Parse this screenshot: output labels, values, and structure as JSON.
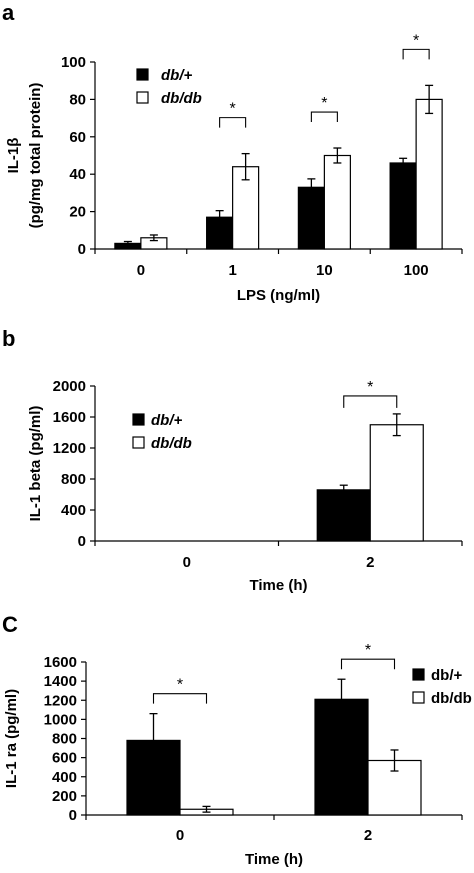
{
  "colors": {
    "db_plus": "#000000",
    "db_db": "#ffffff",
    "stroke": "#000000"
  },
  "chart_data": [
    {
      "panel": "a",
      "type": "bar",
      "xlabel": "LPS (ng/ml)",
      "ylabel_lines": [
        "IL-1β",
        "(pg/mg total protein)"
      ],
      "categories": [
        "0",
        "1",
        "10",
        "100"
      ],
      "ylim": [
        0,
        100
      ],
      "yticks": [
        0,
        20,
        40,
        60,
        80,
        100
      ],
      "legend_position": "top-left",
      "legend_italic": true,
      "series": [
        {
          "name": "db/+",
          "values": [
            3,
            17,
            33,
            46
          ],
          "errors": [
            1,
            3.5,
            4.5,
            2.5
          ]
        },
        {
          "name": "db/db",
          "values": [
            6,
            44,
            50,
            80
          ],
          "errors": [
            1.5,
            7,
            4,
            7.5
          ]
        }
      ],
      "significance": [
        {
          "category": 1,
          "label": "*"
        },
        {
          "category": 2,
          "label": "*"
        },
        {
          "category": 3,
          "label": "*"
        }
      ]
    },
    {
      "panel": "b",
      "type": "bar",
      "xlabel": "Time (h)",
      "ylabel_lines": [
        "IL-1 beta (pg/ml)"
      ],
      "categories": [
        "0",
        "2"
      ],
      "ylim": [
        0,
        2000
      ],
      "yticks": [
        0,
        400,
        800,
        1200,
        1600,
        2000
      ],
      "legend_position": "left",
      "legend_italic": true,
      "series": [
        {
          "name": "db/+",
          "values": [
            0,
            660
          ],
          "errors": [
            0,
            60
          ]
        },
        {
          "name": "db/db",
          "values": [
            0,
            1500
          ],
          "errors": [
            0,
            140
          ]
        }
      ],
      "significance": [
        {
          "category": 1,
          "label": "*"
        }
      ]
    },
    {
      "panel": "C",
      "type": "bar",
      "xlabel": "Time (h)",
      "ylabel_lines": [
        "IL-1 ra (pg/ml)"
      ],
      "categories": [
        "0",
        "2"
      ],
      "ylim": [
        0,
        1600
      ],
      "yticks": [
        0,
        200,
        400,
        600,
        800,
        1000,
        1200,
        1400,
        1600
      ],
      "legend_position": "top-right",
      "legend_italic": false,
      "series": [
        {
          "name": "db/+",
          "values": [
            780,
            1210
          ],
          "errors": [
            280,
            210
          ]
        },
        {
          "name": "db/db",
          "values": [
            60,
            570
          ],
          "errors": [
            30,
            110
          ]
        }
      ],
      "significance": [
        {
          "category": 0,
          "label": "*"
        },
        {
          "category": 1,
          "label": "*"
        }
      ]
    }
  ]
}
